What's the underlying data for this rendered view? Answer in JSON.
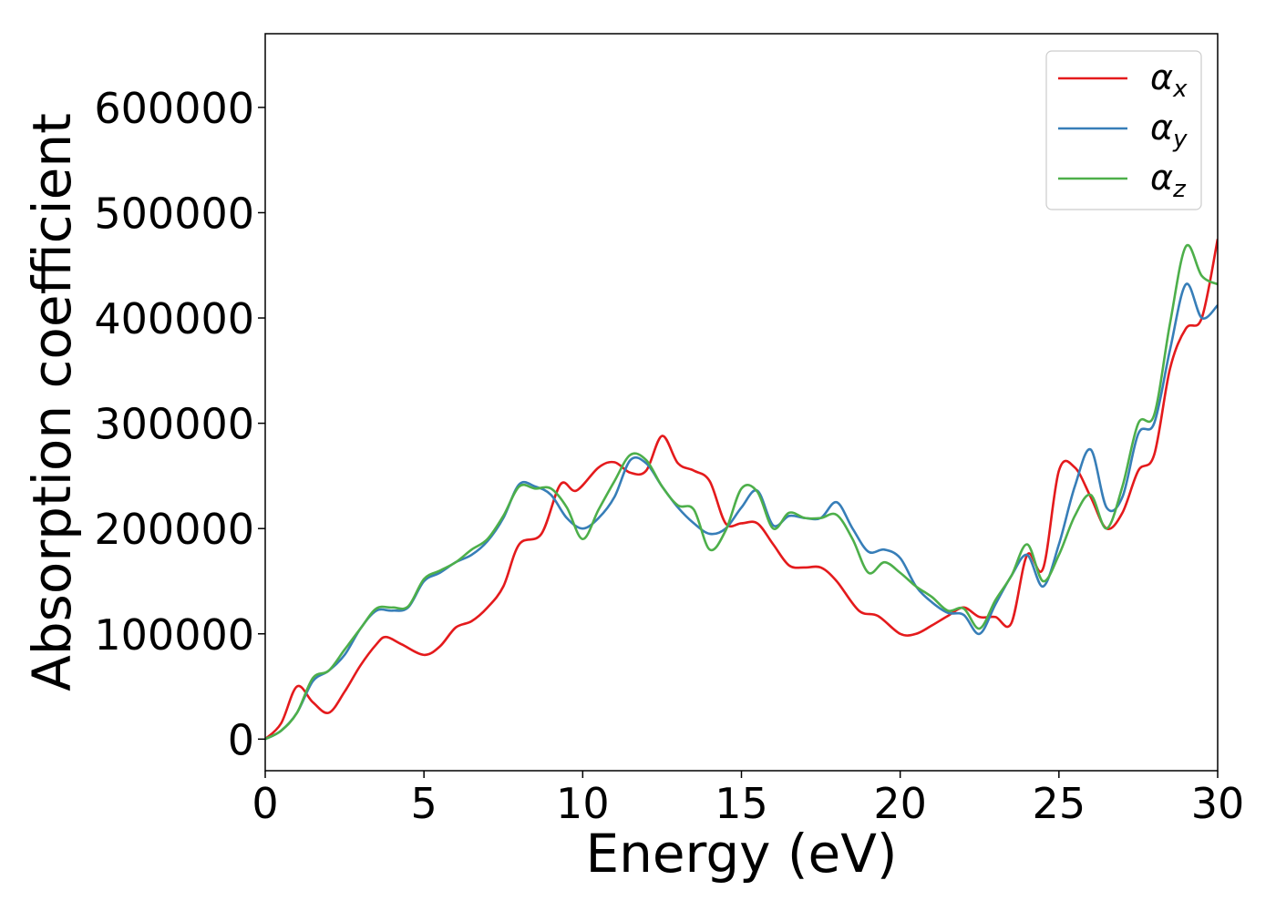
{
  "chart_data": {
    "type": "line",
    "title": "",
    "xlabel": "Energy (eV)",
    "ylabel": "Absorption coefficient",
    "xlim": [
      0,
      30
    ],
    "ylim": [
      -30000,
      670000
    ],
    "xticks": [
      0,
      5,
      10,
      15,
      20,
      25,
      30
    ],
    "xtick_labels": [
      "0",
      "5",
      "10",
      "15",
      "20",
      "25",
      "30"
    ],
    "yticks": [
      0,
      100000,
      200000,
      300000,
      400000,
      500000,
      600000
    ],
    "ytick_labels": [
      "0",
      "100000",
      "200000",
      "300000",
      "400000",
      "500000",
      "600000"
    ],
    "grid": false,
    "legend_position": "top-right",
    "series": [
      {
        "name": "α",
        "subscript": "x",
        "color": "#e41a1c",
        "x": [
          0,
          0.5,
          1,
          1.5,
          2,
          2.5,
          3,
          3.5,
          3.8,
          4.3,
          5,
          5.5,
          6,
          6.5,
          7,
          7.5,
          8,
          8.7,
          9.3,
          9.8,
          10.5,
          11,
          11.5,
          12,
          12.5,
          13,
          13.5,
          14,
          14.5,
          15,
          15.5,
          16,
          16.5,
          17,
          17.5,
          18,
          18.7,
          19.3,
          20,
          20.5,
          21,
          21.5,
          22,
          22.5,
          23,
          23.5,
          24,
          24.5,
          25,
          25.5,
          26,
          26.5,
          27,
          27.5,
          28,
          28.5,
          29,
          29.5,
          30
        ],
        "values": [
          0,
          15000,
          50000,
          35000,
          25000,
          45000,
          70000,
          90000,
          97000,
          90000,
          80000,
          88000,
          106000,
          112000,
          125000,
          145000,
          185000,
          195000,
          242000,
          236000,
          258000,
          263000,
          253000,
          255000,
          288000,
          262000,
          255000,
          245000,
          205000,
          205000,
          205000,
          185000,
          165000,
          163000,
          163000,
          150000,
          122000,
          117000,
          100000,
          100000,
          108000,
          117000,
          125000,
          116000,
          116000,
          110000,
          175000,
          162000,
          255000,
          258000,
          230000,
          200000,
          215000,
          255000,
          270000,
          352000,
          390000,
          400000,
          475000
        ]
      },
      {
        "name": "α",
        "subscript": "y",
        "color": "#377eb8",
        "x": [
          0,
          0.5,
          1,
          1.5,
          2,
          2.5,
          3,
          3.5,
          4,
          4.5,
          5,
          5.5,
          6,
          6.5,
          7,
          7.5,
          8,
          8.5,
          9,
          9.5,
          10,
          10.5,
          11,
          11.5,
          12,
          12.5,
          13,
          13.5,
          14,
          14.5,
          15,
          15.5,
          16,
          16.5,
          17,
          17.5,
          18,
          18.5,
          19,
          19.5,
          20,
          20.5,
          21,
          21.5,
          22,
          22.5,
          23,
          23.5,
          24,
          24.5,
          25,
          25.5,
          26,
          26.5,
          27,
          27.5,
          28,
          28.5,
          29,
          29.5,
          30
        ],
        "values": [
          0,
          8000,
          25000,
          55000,
          65000,
          80000,
          105000,
          122000,
          122000,
          125000,
          150000,
          158000,
          168000,
          175000,
          188000,
          210000,
          242000,
          240000,
          232000,
          210000,
          200000,
          210000,
          230000,
          265000,
          262000,
          240000,
          220000,
          205000,
          195000,
          200000,
          220000,
          236000,
          203000,
          212000,
          210000,
          210000,
          225000,
          200000,
          178000,
          180000,
          172000,
          145000,
          130000,
          120000,
          118000,
          100000,
          128000,
          155000,
          175000,
          145000,
          185000,
          240000,
          275000,
          220000,
          230000,
          290000,
          300000,
          370000,
          432000,
          400000,
          412000
        ]
      },
      {
        "name": "α",
        "subscript": "z",
        "color": "#4daf4a",
        "x": [
          0,
          0.5,
          1,
          1.5,
          2,
          2.5,
          3,
          3.5,
          4,
          4.5,
          5,
          5.5,
          6,
          6.5,
          7,
          7.5,
          8,
          8.5,
          9,
          9.5,
          10,
          10.5,
          11,
          11.5,
          12,
          12.5,
          13,
          13.5,
          14,
          14.5,
          15,
          15.5,
          16,
          16.5,
          17,
          17.5,
          18,
          18.5,
          19,
          19.5,
          20,
          20.5,
          21,
          21.5,
          22,
          22.5,
          23,
          23.5,
          24,
          24.5,
          25,
          25.5,
          26,
          26.5,
          27,
          27.5,
          28,
          28.5,
          29,
          29.5,
          30
        ],
        "values": [
          0,
          8000,
          25000,
          58000,
          65000,
          85000,
          105000,
          124000,
          125000,
          126000,
          152000,
          160000,
          168000,
          180000,
          190000,
          212000,
          240000,
          238000,
          238000,
          220000,
          190000,
          218000,
          245000,
          270000,
          265000,
          240000,
          222000,
          218000,
          180000,
          198000,
          238000,
          235000,
          200000,
          215000,
          210000,
          210000,
          213000,
          190000,
          158000,
          168000,
          158000,
          145000,
          135000,
          122000,
          124000,
          105000,
          132000,
          155000,
          185000,
          150000,
          175000,
          212000,
          232000,
          200000,
          240000,
          300000,
          308000,
          395000,
          468000,
          440000,
          432000
        ]
      }
    ]
  }
}
